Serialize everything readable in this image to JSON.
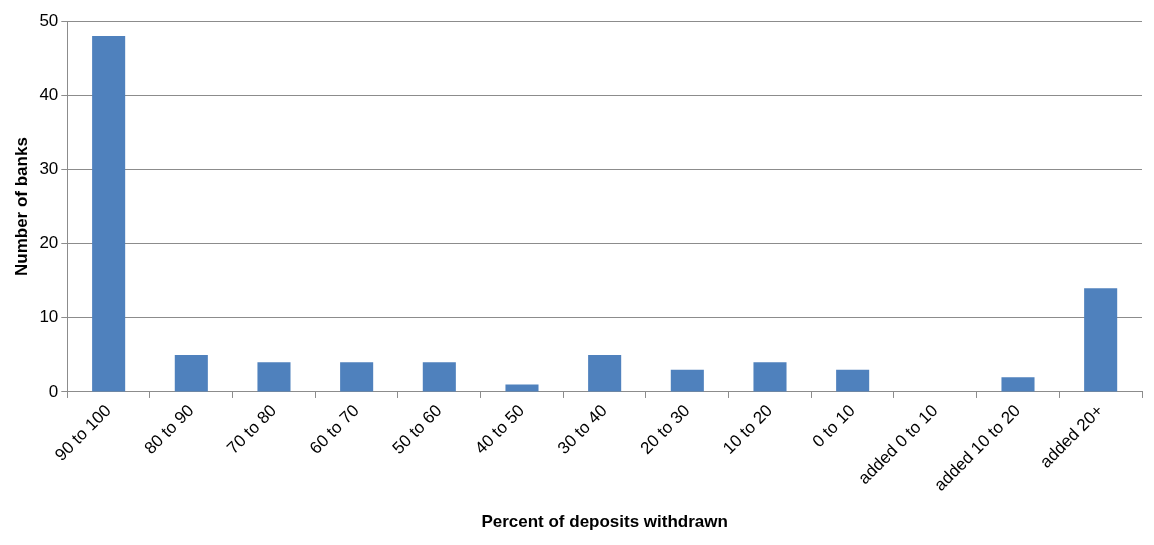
{
  "chart_data": {
    "type": "bar",
    "xlabel": "Percent of deposits withdrawn",
    "ylabel": "Number of banks",
    "categories": [
      "90 to 100",
      "80 to 90",
      "70 to 80",
      "60 to 70",
      "50 to 60",
      "40 to 50",
      "30 to 40",
      "20 to 30",
      "10 to 20",
      "0 to 10",
      "added 0 to 10",
      "added 10 to 20",
      "added 20+"
    ],
    "values": [
      48,
      5,
      4,
      4,
      4,
      1,
      5,
      3,
      4,
      3,
      0,
      2,
      14
    ],
    "color": "#4f81bd",
    "ylim": [
      0,
      50
    ],
    "yticks": [
      0,
      10,
      20,
      30,
      40,
      50
    ],
    "grid": "y",
    "legend": false
  }
}
